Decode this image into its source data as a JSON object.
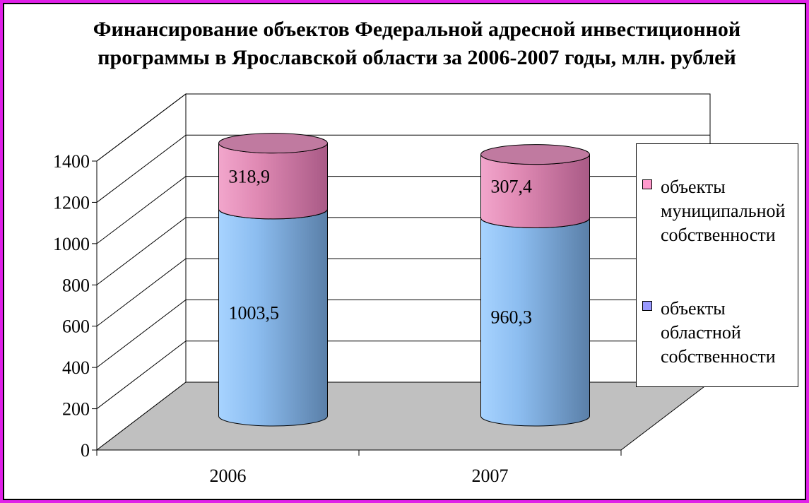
{
  "chart_data": {
    "type": "bar",
    "stacked": true,
    "style": "3d-cylinder",
    "title": "Финансирование объектов Федеральной адресной инвестиционной программы в Ярославской области за 2006-2007 годы, млн. рублей",
    "categories": [
      "2006",
      "2007"
    ],
    "series": [
      {
        "name": "объекты областной собственности",
        "values": [
          1003.5,
          960.3
        ],
        "color": "#99ccff",
        "data_labels": [
          "1003,5",
          "960,3"
        ]
      },
      {
        "name": "объекты муниципальной собственности",
        "values": [
          318.9,
          307.4
        ],
        "color": "#e08ab4",
        "data_labels": [
          "318,9",
          "307,4"
        ]
      }
    ],
    "y_ticks": [
      "0",
      "200",
      "400",
      "600",
      "800",
      "1000",
      "1200",
      "1400"
    ],
    "ylim": [
      0,
      1400
    ],
    "grid": true,
    "legend": {
      "position": "right",
      "entries": [
        {
          "label": "объекты муниципальной собственности",
          "color": "#ff99cc"
        },
        {
          "label": "объекты областной собственности",
          "color": "#9999ff"
        }
      ]
    }
  },
  "colors": {
    "frame": "#e020e8",
    "floor": "#c0c0c0"
  }
}
